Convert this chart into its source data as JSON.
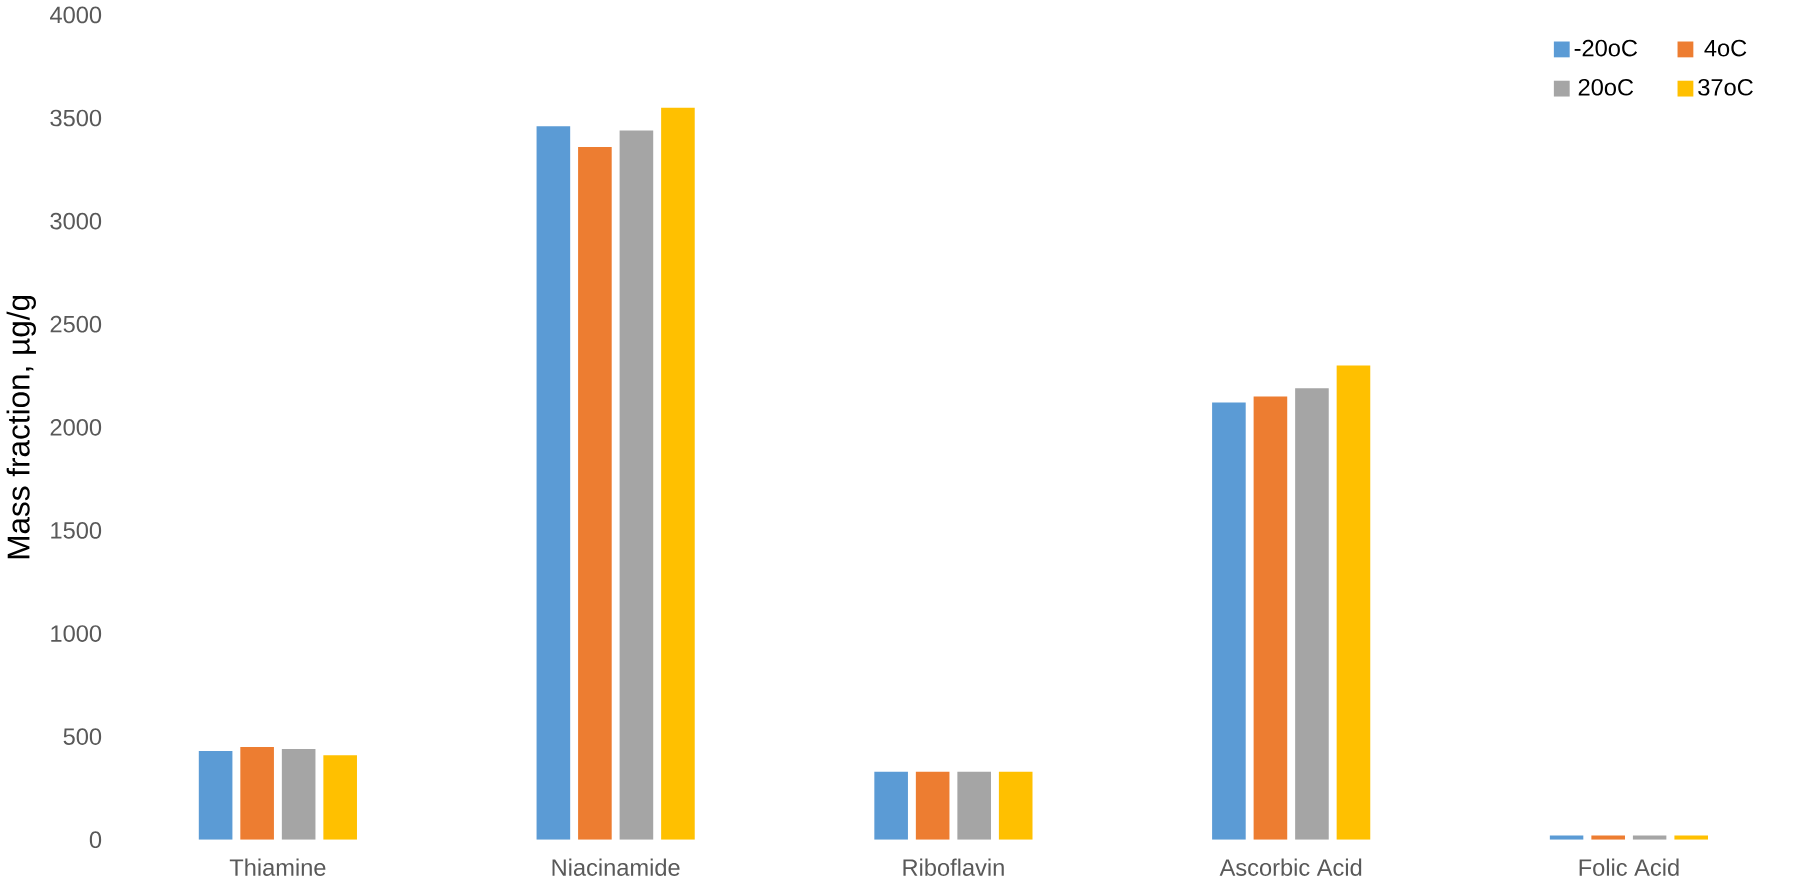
{
  "chart_data": {
    "type": "bar",
    "ylabel": "Mass fraction, µg/g",
    "categories": [
      "Thiamine",
      "Niacinamide",
      "Riboflavin",
      "Ascorbic Acid",
      "Folic Acid"
    ],
    "series": [
      {
        "name": "-20oC",
        "color": "#5b9bd5",
        "values": [
          430,
          3460,
          330,
          2120,
          20
        ]
      },
      {
        "name": "4oC",
        "color": "#ed7d31",
        "values": [
          450,
          3360,
          330,
          2150,
          20
        ]
      },
      {
        "name": "20oC",
        "color": "#a5a5a5",
        "values": [
          440,
          3440,
          330,
          2190,
          20
        ]
      },
      {
        "name": "37oC",
        "color": "#ffc000",
        "values": [
          410,
          3550,
          330,
          2300,
          20
        ]
      }
    ],
    "ylim": [
      0,
      4000
    ],
    "yticks": [
      0,
      500,
      1000,
      1500,
      2000,
      2500,
      3000,
      3500,
      4000
    ],
    "grid": false,
    "legend": "top right"
  }
}
